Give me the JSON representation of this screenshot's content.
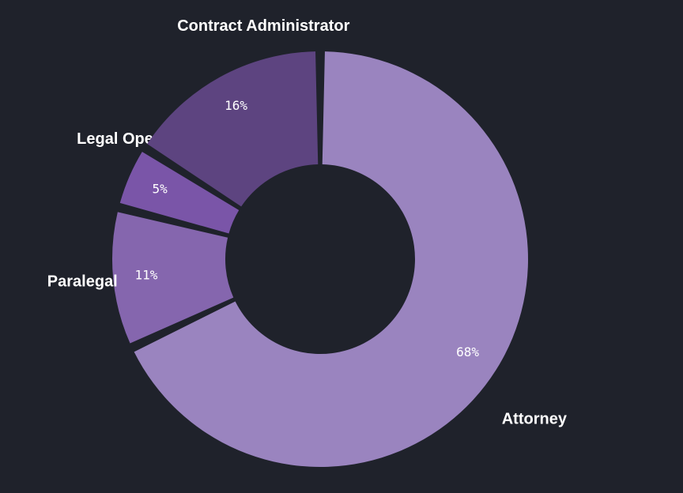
{
  "chart_data": {
    "type": "pie",
    "style": "donut",
    "title": "",
    "slices": [
      {
        "label": "Attorney",
        "value": 68,
        "display": "68%",
        "color": "#9a84bf"
      },
      {
        "label": "Paralegal",
        "value": 11,
        "display": "11%",
        "color": "#8566ae"
      },
      {
        "label": "Legal Operations",
        "value": 5,
        "display": "5%",
        "color": "#7a55a8"
      },
      {
        "label": "Contract Administrator",
        "value": 16,
        "display": "16%",
        "color": "#5d4480"
      }
    ],
    "background": "#1f222b"
  }
}
